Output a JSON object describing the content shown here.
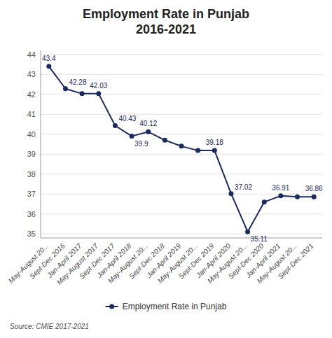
{
  "chart_data": {
    "type": "line",
    "title": "Employment Rate in Punjab\n2016-2021",
    "categories": [
      "May-August 20...",
      "Sept-Dec 2016",
      "Jan-April 2017",
      "May-August 2017",
      "Sept-Dec 2017",
      "Jan-April 2018",
      "May-August 20...",
      "Sept-Dec 2018",
      "Jan-April 2019",
      "May-August 20...",
      "Sept-Dec 2019",
      "Jan-April 2020",
      "May-August 20...",
      "Sept-Dec 2020",
      "Jan-April 2021",
      "May-August 20...",
      "Sept-Dec 2021"
    ],
    "series": [
      {
        "name": "Employment Rate in Punjab",
        "color": "#1b2a5e",
        "marker": "circle",
        "values": [
          43.4,
          42.28,
          42.03,
          42.03,
          40.43,
          39.9,
          40.12,
          39.7,
          39.4,
          39.18,
          39.18,
          37.02,
          35.11,
          36.6,
          36.91,
          36.86,
          36.86
        ]
      }
    ],
    "annotations": [
      {
        "x": 0,
        "y": 43.4,
        "text": "43.4"
      },
      {
        "x": 1,
        "y": 42.28,
        "text": "42.28"
      },
      {
        "x": 3,
        "y": 42.03,
        "text": "42.03"
      },
      {
        "x": 4,
        "y": 40.43,
        "text": "40.43"
      },
      {
        "x": 5,
        "y": 39.9,
        "text": "39.9"
      },
      {
        "x": 6,
        "y": 40.12,
        "text": "40.12"
      },
      {
        "x": 10,
        "y": 39.18,
        "text": "39.18"
      },
      {
        "x": 11,
        "y": 37.02,
        "text": "37.02"
      },
      {
        "x": 12,
        "y": 35.11,
        "text": "35.11"
      },
      {
        "x": 14,
        "y": 36.91,
        "text": "36.91"
      },
      {
        "x": 16,
        "y": 36.86,
        "text": "36.86"
      }
    ],
    "source": "Source: CMIE 2017-2021",
    "ylim": [
      34.8,
      44.2
    ],
    "yticks": [
      35,
      36,
      37,
      38,
      39,
      40,
      41,
      42,
      43,
      44
    ],
    "grid": true,
    "legend": "bottom"
  }
}
